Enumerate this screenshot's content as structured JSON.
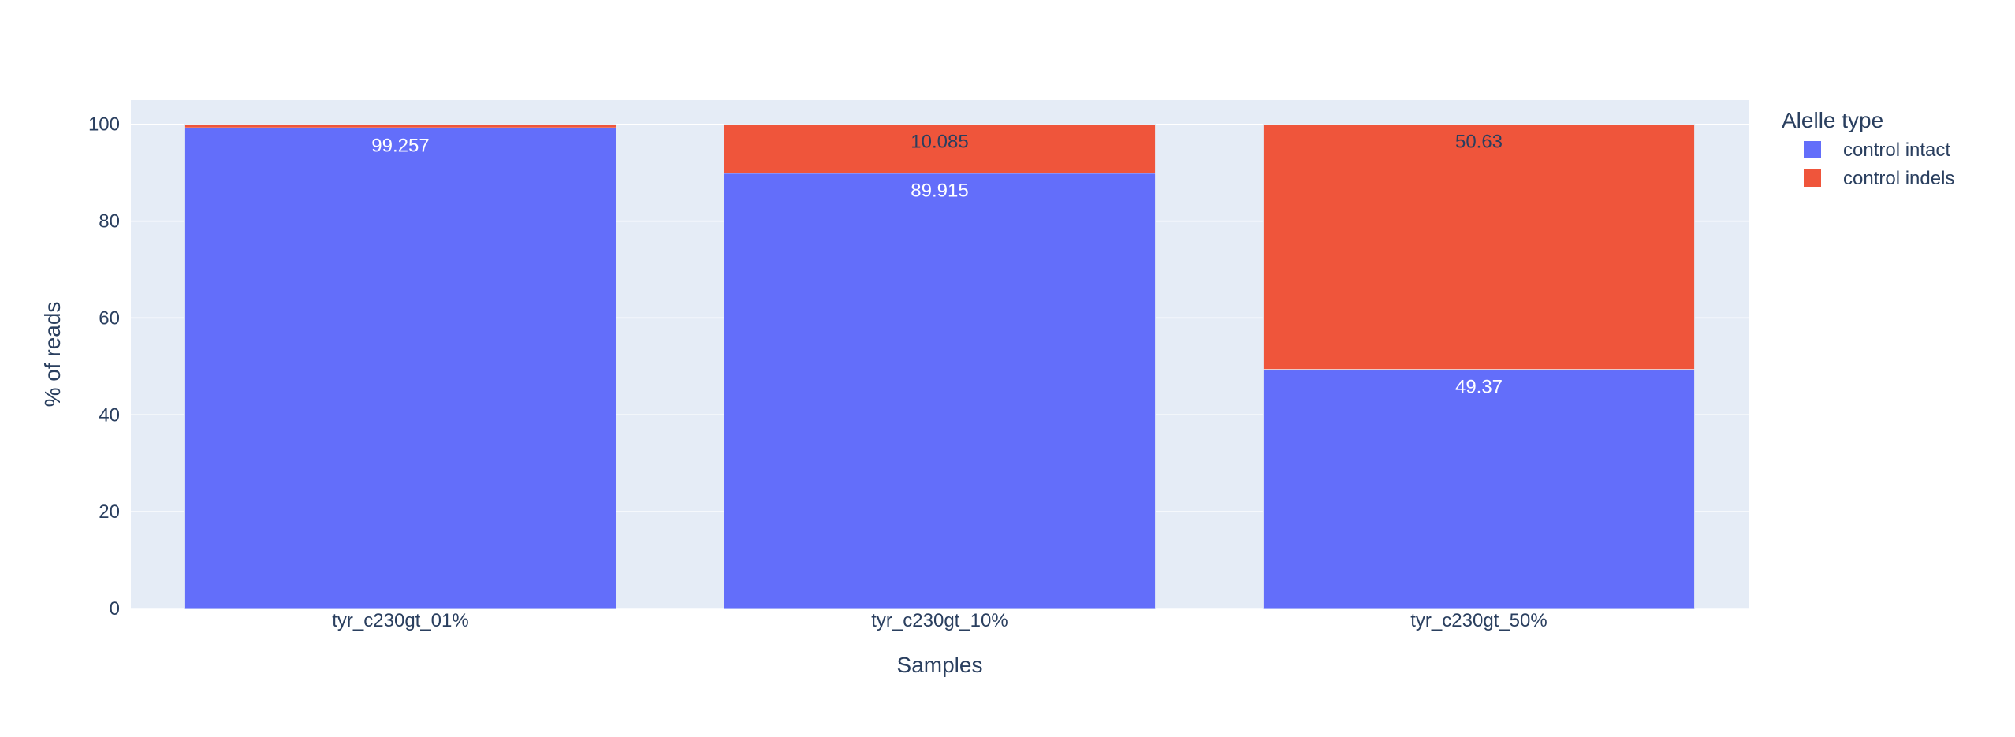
{
  "chart_data": {
    "type": "bar",
    "barmode": "stack",
    "categories": [
      "tyr_c230gt_01%",
      "tyr_c230gt_10%",
      "tyr_c230gt_50%"
    ],
    "series": [
      {
        "name": "control intact",
        "color": "#636efa",
        "values": [
          99.257,
          89.915,
          49.37
        ],
        "labels": [
          "99.257",
          "89.915",
          "49.37"
        ],
        "label_color": "#ffffff"
      },
      {
        "name": "control indels",
        "color": "#ef553b",
        "values": [
          0.743,
          10.085,
          50.63
        ],
        "labels": [
          "",
          "10.085",
          "50.63"
        ],
        "label_color": "#2a3f5f"
      }
    ],
    "xlabel": "Samples",
    "ylabel": "% of reads",
    "ylim": [
      0,
      105
    ],
    "yticks": [
      0,
      20,
      40,
      60,
      80,
      100
    ],
    "grid": true,
    "legend": {
      "title": "Alelle type",
      "placement": "top-right"
    },
    "colors": {
      "plot_bg": "#e5ecf6",
      "grid": "#ffffff",
      "text": "#2a3f5f"
    }
  }
}
